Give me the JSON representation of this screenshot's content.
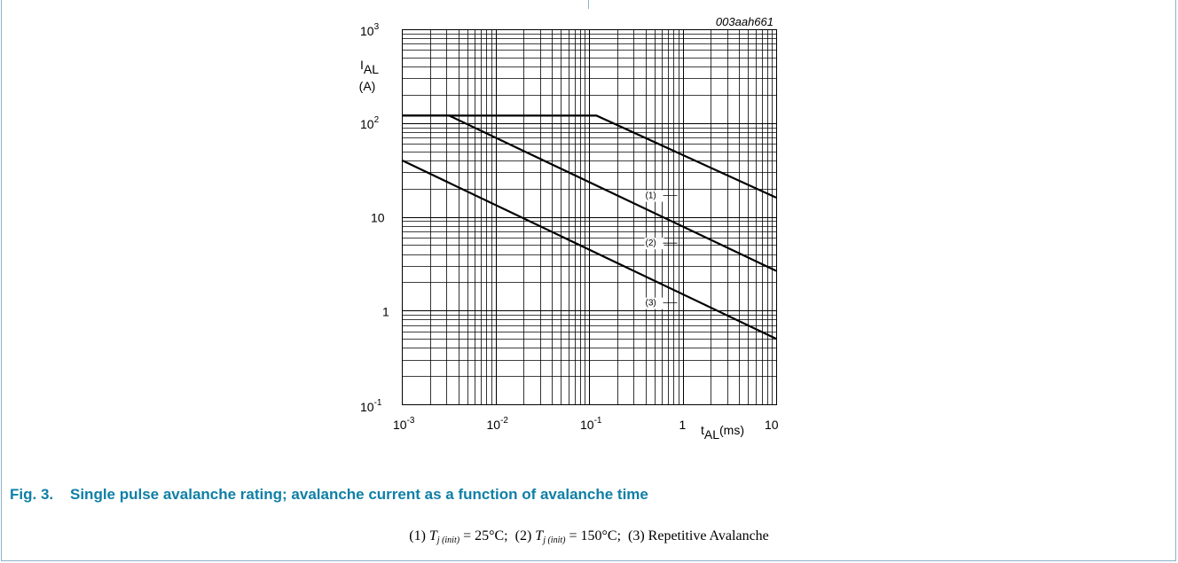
{
  "chart_data": {
    "type": "line",
    "log_x": true,
    "log_y": true,
    "xlim": [
      0.001,
      10
    ],
    "ylim": [
      0.1,
      1000
    ],
    "grid": true,
    "figure_id": "003aah661",
    "ylabel_main": "I",
    "ylabel_sub": "AL",
    "ylabel_unit": "(A)",
    "xlabel_main": "t",
    "xlabel_sub": "AL",
    "xlabel_unit": "(ms)",
    "x_ticks": [
      {
        "base": "10",
        "exp": "-3"
      },
      {
        "base": "10",
        "exp": "-2"
      },
      {
        "base": "10",
        "exp": "-1"
      },
      {
        "base": "1",
        "exp": ""
      },
      {
        "base": "10",
        "exp": ""
      }
    ],
    "y_ticks": [
      {
        "base": "10",
        "exp": "-1"
      },
      {
        "base": "1",
        "exp": ""
      },
      {
        "base": "10",
        "exp": ""
      },
      {
        "base": "10",
        "exp": "2"
      },
      {
        "base": "10",
        "exp": "3"
      }
    ],
    "series": [
      {
        "name": "(1)",
        "x": [
          0.001,
          0.12,
          10
        ],
        "y": [
          120,
          120,
          16
        ]
      },
      {
        "name": "(2)",
        "x": [
          0.001,
          0.0032,
          10
        ],
        "y": [
          120,
          120,
          2.65
        ]
      },
      {
        "name": "(3)",
        "x": [
          0.001,
          10
        ],
        "y": [
          40,
          0.5
        ]
      }
    ]
  },
  "figure": {
    "number": "Fig. 3.",
    "caption": "Single pulse avalanche rating; avalanche current as a function of avalanche time"
  },
  "legend_note": {
    "item1_prefix": "(1)",
    "item1_value": "= 25°C;",
    "item2_prefix": "(2)",
    "item2_value": "= 150°C;",
    "item3": "(3) Repetitive Avalanche",
    "tj_symbol": "T",
    "tj_sub_j": "j",
    "tj_sub_init": "(init)"
  }
}
